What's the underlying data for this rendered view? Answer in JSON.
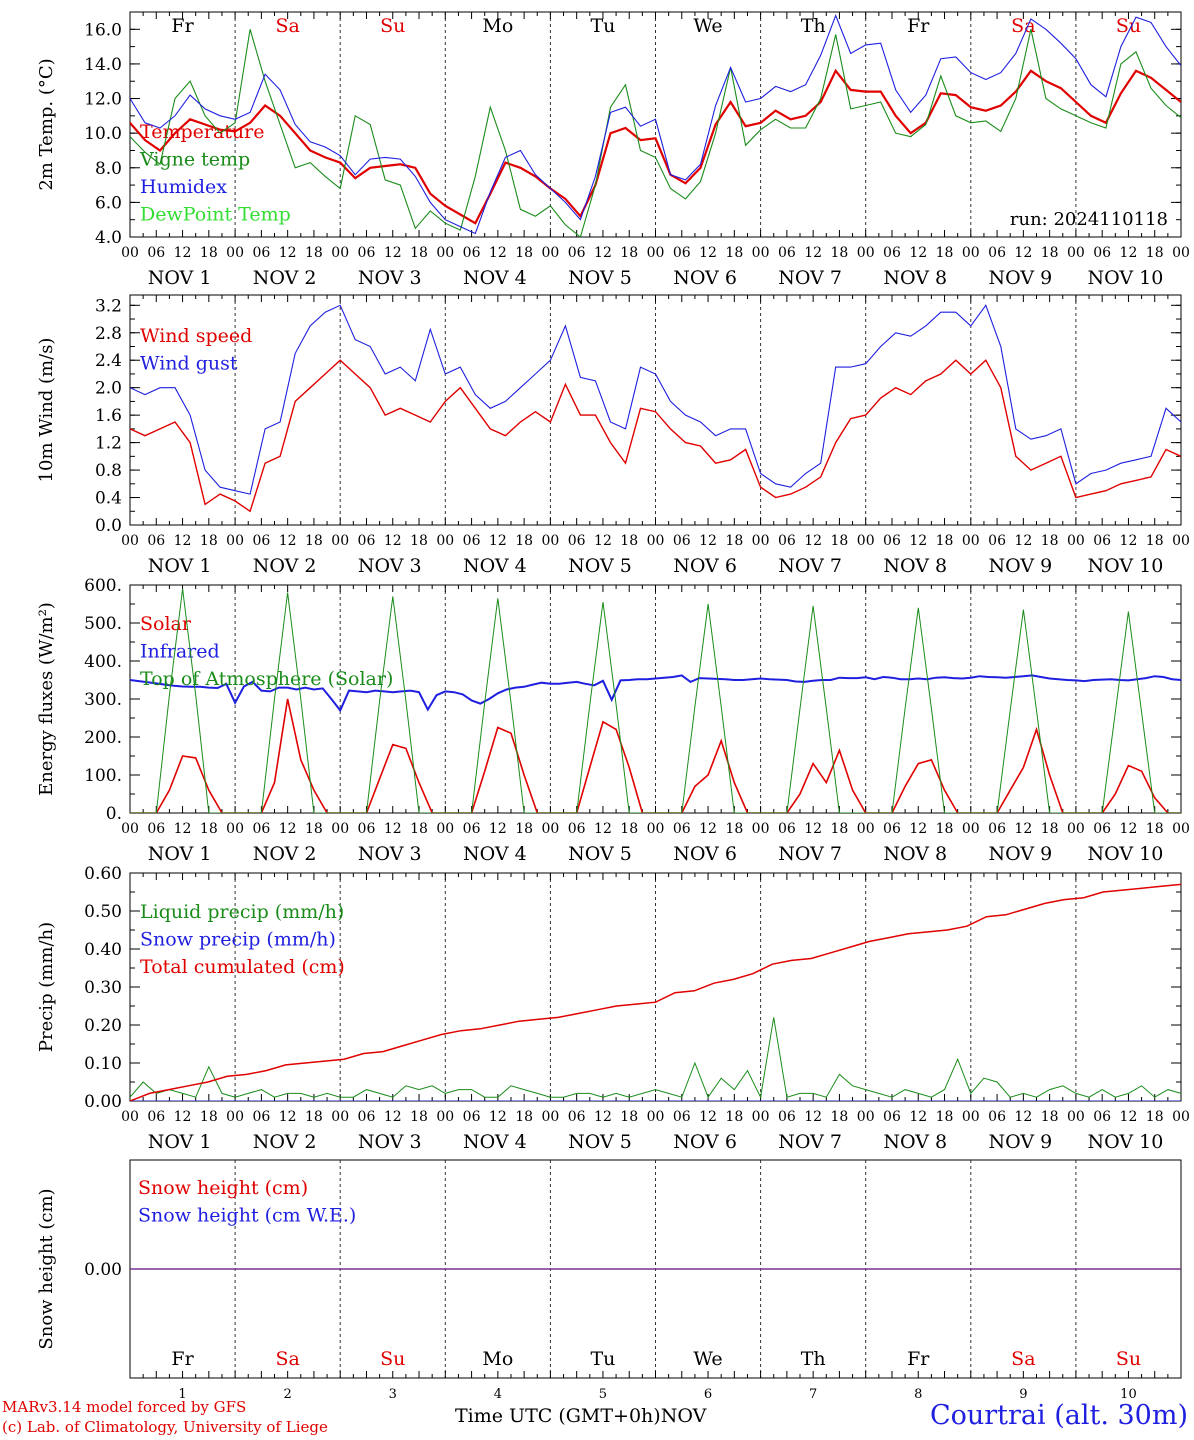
{
  "meta": {
    "run_label": "run: 2024110118",
    "credit_line1": "MARv3.14 model forced by GFS",
    "credit_line2": "(c) Lab. of Climatology, University of Liege",
    "time_axis_label": "Time UTC (GMT+0h)",
    "month_label": "NOV",
    "station": "Courtrai (alt. 30m)"
  },
  "colors": {
    "red": "#e00000",
    "green": "#1a8c1a",
    "blue": "#1f1fe0",
    "lightgreen": "#33dd33",
    "purple": "#7a3090",
    "gray": "#555555"
  },
  "days": [
    {
      "name": "Fr",
      "date": "NOV 1",
      "num": "1",
      "weekend": false
    },
    {
      "name": "Sa",
      "date": "NOV 2",
      "num": "2",
      "weekend": true
    },
    {
      "name": "Su",
      "date": "NOV 3",
      "num": "3",
      "weekend": true
    },
    {
      "name": "Mo",
      "date": "NOV 4",
      "num": "4",
      "weekend": false
    },
    {
      "name": "Tu",
      "date": "NOV 5",
      "num": "5",
      "weekend": false
    },
    {
      "name": "We",
      "date": "NOV 6",
      "num": "6",
      "weekend": false
    },
    {
      "name": "Th",
      "date": "NOV 7",
      "num": "7",
      "weekend": false
    },
    {
      "name": "Fr",
      "date": "NOV 8",
      "num": "8",
      "weekend": false
    },
    {
      "name": "Sa",
      "date": "NOV 9",
      "num": "9",
      "weekend": true
    },
    {
      "name": "Su",
      "date": "NOV 10",
      "num": "10",
      "weekend": true
    }
  ],
  "hour_ticks": [
    "00",
    "06",
    "12",
    "18"
  ],
  "chart_data": [
    {
      "type": "line",
      "id": "temperature",
      "ylabel": "2m Temp. (°C)",
      "ylim": [
        4,
        17
      ],
      "yticks": [
        "4.0",
        "6.0",
        "8.0",
        "10.0",
        "12.0",
        "14.0",
        "16.0"
      ],
      "ytick_values": [
        4,
        6,
        8,
        10,
        12,
        14,
        16
      ],
      "x_hours_step": 6,
      "series": [
        {
          "name": "Temperature",
          "color": "red",
          "width": 2.2,
          "values": [
            10.6,
            9.6,
            9.0,
            10.0,
            10.8,
            10.5,
            10.2,
            10.1,
            10.6,
            11.6,
            11.0,
            10.0,
            9.0,
            8.6,
            8.3,
            7.4,
            8.0,
            8.1,
            8.2,
            8.0,
            6.5,
            5.8,
            5.3,
            4.8,
            6.5,
            8.3,
            8.0,
            7.5,
            6.8,
            6.2,
            5.2,
            7.0,
            10.0,
            10.3,
            9.6,
            9.7,
            7.6,
            7.1,
            8.0,
            10.5,
            11.8,
            10.4,
            10.6,
            11.3,
            10.8,
            11.0,
            11.8,
            13.6,
            12.5,
            12.4,
            12.4,
            11.0,
            10.0,
            10.6,
            12.3,
            12.2,
            11.5,
            11.3,
            11.6,
            12.4,
            13.6,
            13.0,
            12.6,
            11.8,
            11.0,
            10.6,
            12.3,
            13.6,
            13.2,
            12.5,
            11.8
          ]
        },
        {
          "name": "Vigne temp",
          "color": "green",
          "width": 1.1,
          "values": [
            9.8,
            8.9,
            8.2,
            12.0,
            13.0,
            11.0,
            10.0,
            10.6,
            16.0,
            13.0,
            10.5,
            8.0,
            8.3,
            7.5,
            6.8,
            11.0,
            10.5,
            7.3,
            7.0,
            4.5,
            5.5,
            4.8,
            4.4,
            7.5,
            11.5,
            9.0,
            5.6,
            5.2,
            5.8,
            4.7,
            4.0,
            7.0,
            11.5,
            12.8,
            9.0,
            8.6,
            6.8,
            6.2,
            7.2,
            10.0,
            13.8,
            9.3,
            10.2,
            10.8,
            10.3,
            10.3,
            12.0,
            15.7,
            11.4,
            11.6,
            11.8,
            10.0,
            9.8,
            10.5,
            13.3,
            11.0,
            10.6,
            10.7,
            10.1,
            12.0,
            16.0,
            12.0,
            11.4,
            11.0,
            10.6,
            10.3,
            14.0,
            14.7,
            12.6,
            11.6,
            10.9
          ]
        },
        {
          "name": "Humidex",
          "color": "blue",
          "width": 1.1,
          "values": [
            12.0,
            10.6,
            10.3,
            11.0,
            12.2,
            11.4,
            11.0,
            10.8,
            11.2,
            13.4,
            12.5,
            10.5,
            9.5,
            9.2,
            8.7,
            7.6,
            8.5,
            8.6,
            8.5,
            7.5,
            6.0,
            5.0,
            4.6,
            4.2,
            6.6,
            8.6,
            9.0,
            7.6,
            6.8,
            6.0,
            5.0,
            7.5,
            11.2,
            11.5,
            10.4,
            10.8,
            7.6,
            7.3,
            8.2,
            11.6,
            13.8,
            11.8,
            12.0,
            12.7,
            12.4,
            12.8,
            14.5,
            16.8,
            14.6,
            15.1,
            15.2,
            12.5,
            11.2,
            12.2,
            14.3,
            14.4,
            13.5,
            13.1,
            13.5,
            14.6,
            16.6,
            16.0,
            15.2,
            14.3,
            12.8,
            12.1,
            15.0,
            16.7,
            16.4,
            15.0,
            13.9
          ]
        },
        {
          "name": "DewPoint Temp",
          "color": "lightgreen",
          "width": 1.1,
          "values": []
        }
      ]
    },
    {
      "type": "line",
      "id": "wind",
      "ylabel": "10m Wind (m/s)",
      "ylim": [
        0,
        3.35
      ],
      "yticks": [
        "0.0",
        "0.4",
        "0.8",
        "1.2",
        "1.6",
        "2.0",
        "2.4",
        "2.8",
        "3.2"
      ],
      "ytick_values": [
        0,
        0.4,
        0.8,
        1.2,
        1.6,
        2.0,
        2.4,
        2.8,
        3.2
      ],
      "x_hours_step": 6,
      "series": [
        {
          "name": "Wind speed",
          "color": "red",
          "width": 1.4,
          "values": [
            1.4,
            1.3,
            1.4,
            1.5,
            1.2,
            0.3,
            0.45,
            0.35,
            0.2,
            0.9,
            1.0,
            1.8,
            2.0,
            2.2,
            2.4,
            2.2,
            2.0,
            1.6,
            1.7,
            1.6,
            1.5,
            1.8,
            2.0,
            1.7,
            1.4,
            1.3,
            1.5,
            1.65,
            1.5,
            2.05,
            1.6,
            1.6,
            1.2,
            0.9,
            1.7,
            1.65,
            1.4,
            1.2,
            1.15,
            0.9,
            0.95,
            1.1,
            0.55,
            0.4,
            0.45,
            0.55,
            0.7,
            1.2,
            1.55,
            1.6,
            1.85,
            2.0,
            1.9,
            2.1,
            2.2,
            2.4,
            2.2,
            2.4,
            2.0,
            1.0,
            0.8,
            0.9,
            1.0,
            0.4,
            0.45,
            0.5,
            0.6,
            0.65,
            0.7,
            1.1,
            1.0
          ]
        },
        {
          "name": "Wind gust",
          "color": "blue",
          "width": 1.1,
          "values": [
            2.0,
            1.9,
            2.0,
            2.0,
            1.6,
            0.8,
            0.55,
            0.5,
            0.45,
            1.4,
            1.5,
            2.5,
            2.9,
            3.1,
            3.2,
            2.7,
            2.6,
            2.2,
            2.3,
            2.1,
            2.85,
            2.2,
            2.3,
            1.9,
            1.7,
            1.8,
            2.0,
            2.2,
            2.4,
            2.9,
            2.15,
            2.1,
            1.5,
            1.4,
            2.3,
            2.2,
            1.8,
            1.6,
            1.5,
            1.3,
            1.4,
            1.4,
            0.75,
            0.6,
            0.55,
            0.75,
            0.9,
            2.3,
            2.3,
            2.35,
            2.6,
            2.8,
            2.75,
            2.9,
            3.1,
            3.1,
            2.9,
            3.2,
            2.6,
            1.4,
            1.25,
            1.3,
            1.4,
            0.6,
            0.75,
            0.8,
            0.9,
            0.95,
            1.0,
            1.7,
            1.5
          ]
        }
      ]
    },
    {
      "type": "line",
      "id": "energy",
      "ylabel": "Energy fluxes (W/m²)",
      "ylim": [
        0,
        600
      ],
      "yticks": [
        "0.",
        "100.",
        "200.",
        "300.",
        "400.",
        "500.",
        "600."
      ],
      "ytick_values": [
        0,
        100,
        200,
        300,
        400,
        500,
        600
      ],
      "x_hours_step": 3,
      "series": [
        {
          "name": "Solar",
          "color": "red",
          "width": 1.6,
          "values": [
            0,
            0,
            0,
            60,
            150,
            145,
            60,
            0,
            0,
            0,
            0,
            80,
            300,
            140,
            60,
            0,
            0,
            0,
            0,
            90,
            180,
            170,
            80,
            0,
            0,
            0,
            0,
            110,
            225,
            210,
            100,
            0,
            0,
            0,
            0,
            120,
            240,
            220,
            120,
            0,
            0,
            0,
            0,
            70,
            100,
            190,
            80,
            0,
            0,
            0,
            0,
            50,
            130,
            80,
            165,
            60,
            0,
            0,
            0,
            70,
            130,
            140,
            60,
            0,
            0,
            0,
            0,
            60,
            120,
            220,
            100,
            0,
            0,
            0,
            0,
            50,
            125,
            110,
            40,
            0,
            0
          ]
        },
        {
          "name": "Infrared",
          "color": "blue",
          "width": 2.0,
          "values": [
            350,
            347,
            344,
            341,
            338,
            335,
            333,
            332,
            332,
            330,
            329,
            340,
            290,
            333,
            345,
            322,
            320,
            330,
            330,
            325,
            330,
            325,
            328,
            300,
            270,
            322,
            320,
            318,
            322,
            320,
            318,
            320,
            322,
            318,
            272,
            310,
            320,
            318,
            312,
            296,
            288,
            300,
            315,
            325,
            330,
            332,
            338,
            343,
            340,
            340,
            343,
            345,
            340,
            336,
            348,
            298,
            349,
            350,
            352,
            352,
            354,
            356,
            358,
            362,
            345,
            355,
            354,
            353,
            352,
            350,
            350,
            352,
            354,
            352,
            351,
            350,
            346,
            345,
            348,
            350,
            350,
            356,
            355,
            355,
            357,
            352,
            358,
            356,
            352,
            352,
            354,
            352,
            356,
            357,
            355,
            354,
            356,
            360,
            358,
            357,
            356,
            358,
            360,
            362,
            358,
            354,
            352,
            350,
            349,
            347,
            350,
            351,
            352,
            350,
            349,
            352,
            355,
            360,
            358,
            352,
            350
          ]
        },
        {
          "name": "Top of Atmosphere (Solar)",
          "color": "green",
          "width": 1.0,
          "values": [
            0,
            0,
            0,
            310,
            590,
            310,
            0,
            0,
            0,
            0,
            0,
            300,
            580,
            300,
            0,
            0,
            0,
            0,
            0,
            295,
            570,
            295,
            0,
            0,
            0,
            0,
            0,
            290,
            565,
            290,
            0,
            0,
            0,
            0,
            0,
            285,
            555,
            285,
            0,
            0,
            0,
            0,
            0,
            280,
            550,
            280,
            0,
            0,
            0,
            0,
            0,
            275,
            545,
            275,
            0,
            0,
            0,
            0,
            0,
            275,
            540,
            275,
            0,
            0,
            0,
            0,
            0,
            270,
            535,
            270,
            0,
            0,
            0,
            0,
            0,
            265,
            530,
            265,
            0,
            0,
            0
          ]
        }
      ]
    },
    {
      "type": "line",
      "id": "precip",
      "ylabel": "Precip (mm/h)",
      "ylim": [
        0,
        0.6
      ],
      "yticks": [
        "0.00",
        "0.10",
        "0.20",
        "0.30",
        "0.40",
        "0.50",
        "0.60"
      ],
      "ytick_values": [
        0,
        0.1,
        0.2,
        0.3,
        0.4,
        0.5,
        0.6
      ],
      "x_hours_step": 6,
      "series": [
        {
          "name": "Liquid precip (mm/h)",
          "color": "green",
          "width": 1.0,
          "values": [
            0.01,
            0.05,
            0.02,
            0.03,
            0.02,
            0.01,
            0.09,
            0.02,
            0.01,
            0.02,
            0.03,
            0.01,
            0.02,
            0.02,
            0.01,
            0.02,
            0.01,
            0.01,
            0.03,
            0.02,
            0.01,
            0.04,
            0.03,
            0.04,
            0.02,
            0.03,
            0.03,
            0.01,
            0.01,
            0.04,
            0.03,
            0.02,
            0.01,
            0.01,
            0.02,
            0.02,
            0.01,
            0.02,
            0.01,
            0.02,
            0.03,
            0.02,
            0.01,
            0.1,
            0.01,
            0.06,
            0.03,
            0.08,
            0.01,
            0.22,
            0.01,
            0.02,
            0.02,
            0.01,
            0.07,
            0.04,
            0.03,
            0.02,
            0.01,
            0.03,
            0.02,
            0.01,
            0.03,
            0.11,
            0.02,
            0.06,
            0.05,
            0.01,
            0.02,
            0.01,
            0.03,
            0.04,
            0.02,
            0.01,
            0.03,
            0.01,
            0.02,
            0.04,
            0.01,
            0.03,
            0.02
          ]
        },
        {
          "name": "Snow precip (mm/h)",
          "color": "blue",
          "width": 1.0,
          "values": [
            0,
            0
          ]
        },
        {
          "name": "Total cumulated (cm)",
          "color": "red",
          "width": 1.5,
          "values": [
            0,
            0.02,
            0.03,
            0.04,
            0.05,
            0.065,
            0.07,
            0.08,
            0.095,
            0.1,
            0.105,
            0.11,
            0.125,
            0.13,
            0.145,
            0.16,
            0.175,
            0.185,
            0.19,
            0.2,
            0.21,
            0.215,
            0.22,
            0.23,
            0.24,
            0.25,
            0.255,
            0.26,
            0.285,
            0.29,
            0.31,
            0.32,
            0.335,
            0.36,
            0.37,
            0.375,
            0.39,
            0.405,
            0.42,
            0.43,
            0.44,
            0.445,
            0.45,
            0.46,
            0.485,
            0.49,
            0.505,
            0.52,
            0.53,
            0.535,
            0.55,
            0.555,
            0.56,
            0.565,
            0.57
          ]
        }
      ]
    },
    {
      "type": "line",
      "id": "snow",
      "ylabel": "Snow height (cm)",
      "ylim": [
        -1,
        1
      ],
      "yticks": [
        "0.00"
      ],
      "ytick_values": [
        0
      ],
      "x_hours_step": 6,
      "series": [
        {
          "name": "Snow height (cm)",
          "color": "red",
          "width": 1.0,
          "values": [
            0,
            0
          ]
        },
        {
          "name": "Snow height (cm W.E.)",
          "color": "blue",
          "width": 1.0,
          "values": [
            0,
            0
          ]
        }
      ]
    }
  ]
}
